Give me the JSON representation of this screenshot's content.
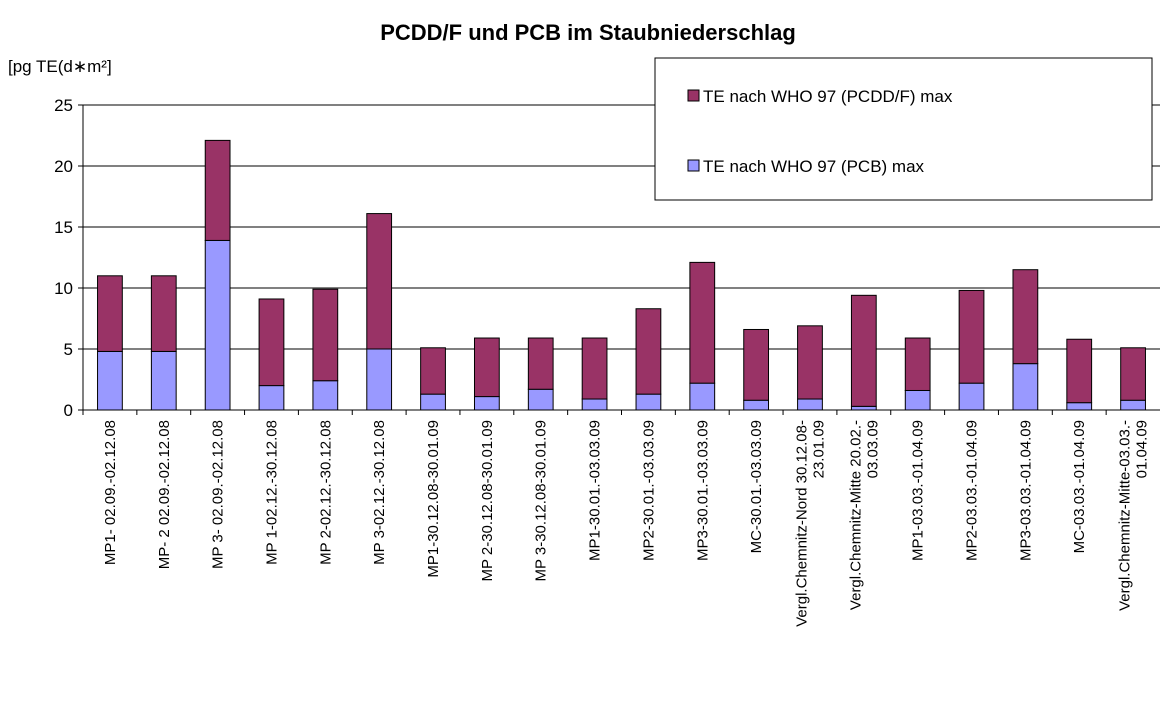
{
  "chart_data": {
    "type": "stacked-bar",
    "title": "PCDD/F und PCB im Staubniederschlag",
    "y_label": "[pg TE(d∗m²]",
    "categories": [
      "MP1- 02.09.-02.12.08",
      "MP- 2 02.09.-02.12.08",
      "MP 3- 02.09.-02.12.08",
      "MP 1-02.12.-30.12.08",
      "MP 2-02.12.-30.12.08",
      "MP 3-02.12.-30.12.08",
      "MP1-30.12.08-30.01.09",
      "MP 2-30.12.08-30.01.09",
      "MP 3-30.12.08-30.01.09",
      "MP1-30.01.-03.03.09",
      "MP2-30.01.-03.03.09",
      "MP3-30.01.-03.03.09",
      "MC-30.01.-03.03.09",
      "Vergl.Chemnitz-Nord 30.12.08-\n23.01.09",
      "Vergl.Chemnitz-Mitte 20.02.-\n03.03.09",
      "MP1-03.03.-01.04.09",
      "MP2-03.03.-01.04.09",
      "MP3-03.03.-01.04.09",
      "MC-03.03.-01.04.09",
      "Vergl.Chemnitz-Mitte-03.03.-\n01.04.09"
    ],
    "series": [
      {
        "name": "TE nach WHO 97 (PCB) max",
        "color": "#9999ff",
        "values": [
          4.8,
          4.8,
          13.9,
          2.0,
          2.4,
          5.0,
          1.3,
          1.1,
          1.7,
          0.9,
          1.3,
          2.2,
          0.8,
          0.9,
          0.3,
          1.6,
          2.2,
          3.8,
          0.6,
          0.8
        ]
      },
      {
        "name": "TE nach WHO 97 (PCDD/F) max",
        "color": "#993366",
        "values": [
          6.2,
          6.2,
          8.2,
          7.1,
          7.5,
          11.1,
          3.8,
          4.8,
          4.2,
          5.0,
          7.0,
          9.9,
          5.8,
          6.0,
          9.1,
          4.3,
          7.6,
          7.7,
          5.2,
          4.3
        ]
      }
    ],
    "ylim": [
      0,
      25
    ],
    "yticks": [
      0,
      5,
      10,
      15,
      20,
      25
    ],
    "grid": true
  }
}
